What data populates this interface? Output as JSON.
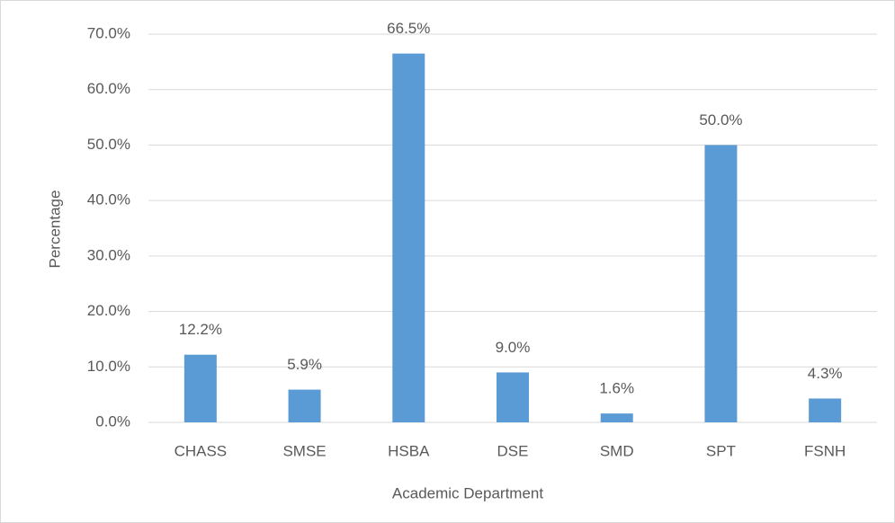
{
  "chart_data": {
    "type": "bar",
    "x_label": "Academic Department",
    "y_label": "Percentage",
    "categories": [
      "CHASS",
      "SMSE",
      "HSBA",
      "DSE",
      "SMD",
      "SPT",
      "FSNH"
    ],
    "values": [
      12.2,
      5.9,
      66.5,
      9.0,
      1.6,
      50.0,
      4.3
    ],
    "value_labels": [
      "12.2%",
      "5.9%",
      "66.5%",
      "9.0%",
      "1.6%",
      "50.0%",
      "4.3%"
    ],
    "color": "#5b9bd5",
    "ylim": [
      0,
      70
    ],
    "yticks": [
      {
        "value": 0,
        "label": "0.0%"
      },
      {
        "value": 10,
        "label": "10.0%"
      },
      {
        "value": 20,
        "label": "20.0%"
      },
      {
        "value": 30,
        "label": "30.0%"
      },
      {
        "value": 40,
        "label": "40.0%"
      },
      {
        "value": 50,
        "label": "50.0%"
      },
      {
        "value": 60,
        "label": "60.0%"
      },
      {
        "value": 70,
        "label": "70.0%"
      }
    ],
    "grid": true
  }
}
